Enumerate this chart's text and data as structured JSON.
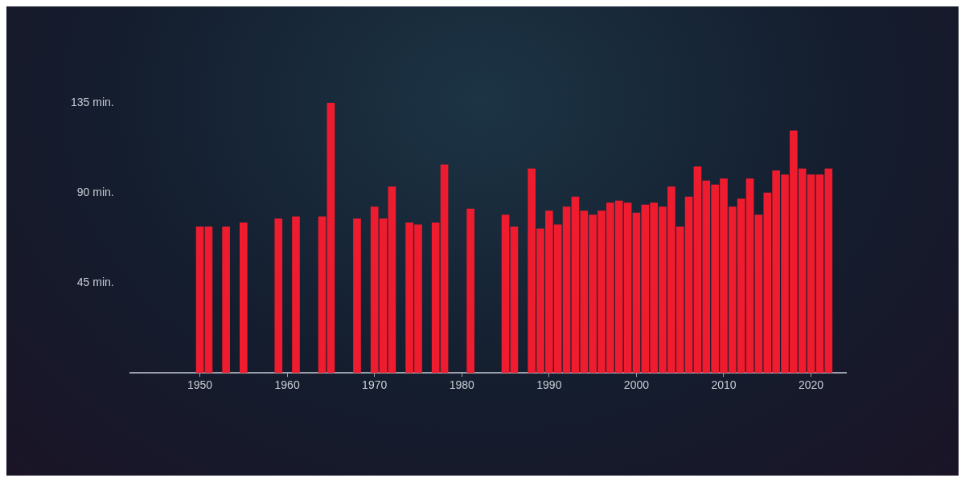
{
  "chart_data": {
    "type": "bar",
    "x": [
      1950,
      1951,
      1953,
      1955,
      1959,
      1961,
      1964,
      1965,
      1968,
      1970,
      1971,
      1972,
      1974,
      1975,
      1977,
      1978,
      1981,
      1985,
      1986,
      1988,
      1989,
      1990,
      1991,
      1992,
      1993,
      1994,
      1995,
      1996,
      1997,
      1998,
      1999,
      2000,
      2001,
      2002,
      2003,
      2004,
      2005,
      2006,
      2007,
      2008,
      2009,
      2010,
      2011,
      2012,
      2013,
      2014,
      2015,
      2016,
      2017,
      2018,
      2019,
      2020,
      2021,
      2022
    ],
    "values": [
      73,
      73,
      73,
      75,
      77,
      78,
      78,
      135,
      77,
      83,
      77,
      93,
      75,
      74,
      75,
      104,
      82,
      79,
      73,
      102,
      72,
      81,
      74,
      83,
      88,
      81,
      79,
      81,
      85,
      86,
      85,
      80,
      84,
      85,
      83,
      93,
      73,
      88,
      103,
      96,
      94,
      97,
      83,
      87,
      97,
      79,
      90,
      101,
      99,
      121,
      102,
      99,
      99,
      102
    ],
    "color": "#ee1c2e",
    "xlim": [
      1942,
      2024
    ],
    "xticks": [
      1950,
      1960,
      1970,
      1980,
      1990,
      2000,
      2010,
      2020
    ],
    "ylim": [
      0,
      135
    ],
    "yticks": [
      {
        "value": 45,
        "label": "45 min."
      },
      {
        "value": 90,
        "label": "90 min."
      },
      {
        "value": 135,
        "label": "135 min."
      }
    ],
    "grid": false,
    "legend": false
  }
}
